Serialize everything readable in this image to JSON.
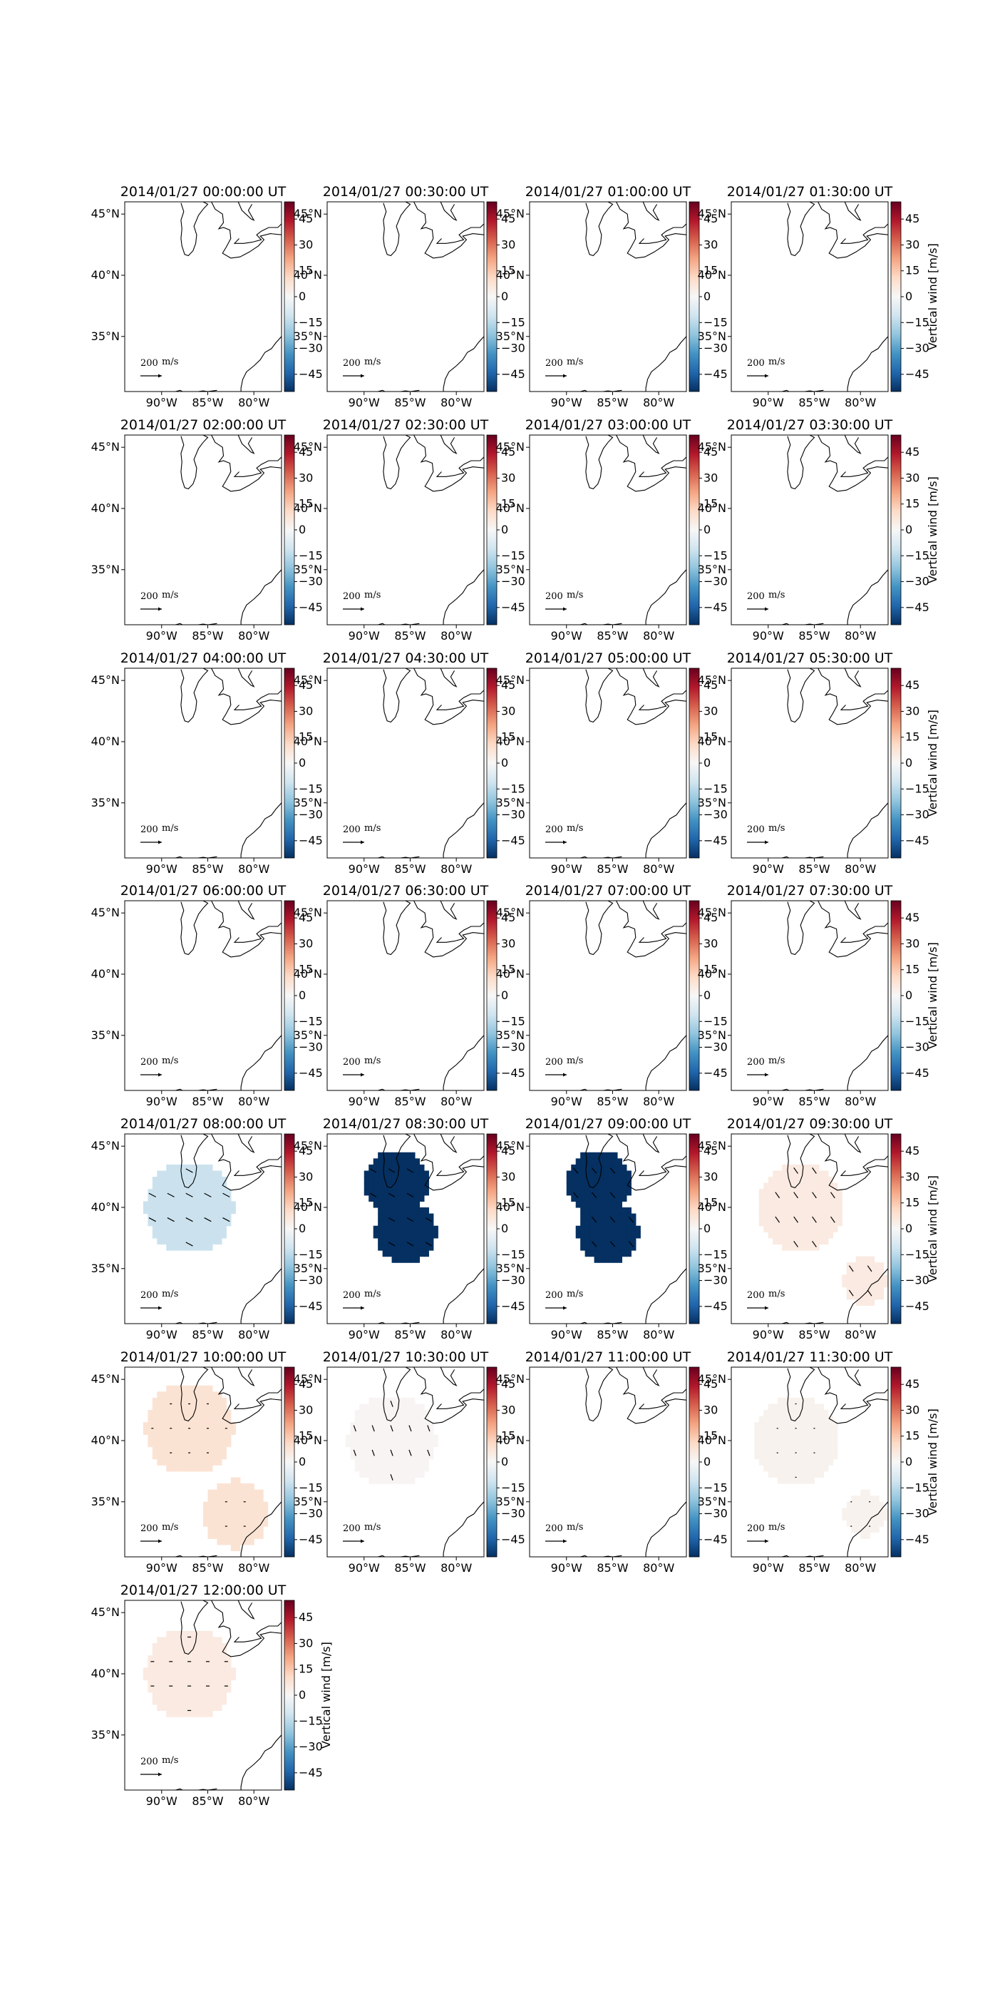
{
  "chart_data": {
    "type": "heatmap",
    "description_fields": [
      "vertical wind field (color) with horizontal wind arrows over the Great Lakes / eastern US"
    ],
    "colorbar": {
      "label": "Vertical wind [m/s]",
      "ticks": [
        45,
        30,
        15,
        0,
        -15,
        -30,
        -45
      ],
      "range": [
        -55,
        55
      ],
      "colormap": "RdBu_r"
    },
    "axes": {
      "lon_ticks": [
        "90°W",
        "85°W",
        "80°W"
      ],
      "lat_ticks": [
        "45°N",
        "40°N",
        "35°N"
      ],
      "lon_values": [
        -90,
        -85,
        -80
      ],
      "lat_values": [
        45,
        40,
        35
      ],
      "lon_range": [
        -94,
        -77
      ],
      "lat_range": [
        30.5,
        46
      ]
    },
    "vector_key": {
      "label": "200",
      "unit_symbol": "m/s"
    },
    "panels": [
      {
        "title": "2014/01/27 00:00:00 UT",
        "value": null,
        "regions": []
      },
      {
        "title": "2014/01/27 00:30:00 UT",
        "value": null,
        "regions": []
      },
      {
        "title": "2014/01/27 01:00:00 UT",
        "value": null,
        "regions": []
      },
      {
        "title": "2014/01/27 01:30:00 UT",
        "value": null,
        "regions": []
      },
      {
        "title": "2014/01/27 02:00:00 UT",
        "value": null,
        "regions": []
      },
      {
        "title": "2014/01/27 02:30:00 UT",
        "value": null,
        "regions": []
      },
      {
        "title": "2014/01/27 03:00:00 UT",
        "value": null,
        "regions": []
      },
      {
        "title": "2014/01/27 03:30:00 UT",
        "value": null,
        "regions": []
      },
      {
        "title": "2014/01/27 04:00:00 UT",
        "value": null,
        "regions": []
      },
      {
        "title": "2014/01/27 04:30:00 UT",
        "value": null,
        "regions": []
      },
      {
        "title": "2014/01/27 05:00:00 UT",
        "value": null,
        "regions": []
      },
      {
        "title": "2014/01/27 05:30:00 UT",
        "value": null,
        "regions": []
      },
      {
        "title": "2014/01/27 06:00:00 UT",
        "value": null,
        "regions": []
      },
      {
        "title": "2014/01/27 06:30:00 UT",
        "value": null,
        "regions": []
      },
      {
        "title": "2014/01/27 07:00:00 UT",
        "value": null,
        "regions": []
      },
      {
        "title": "2014/01/27 07:30:00 UT",
        "value": null,
        "regions": []
      },
      {
        "title": "2014/01/27 08:00:00 UT",
        "value": -12,
        "regions": [
          {
            "lon": -87,
            "lat": 40,
            "r": 4.8
          }
        ],
        "arrows": {
          "angle": 28,
          "len": 11
        }
      },
      {
        "title": "2014/01/27 08:30:00 UT",
        "value": -55,
        "regions": [
          {
            "lon": -86.5,
            "lat": 42,
            "r": 3.4
          },
          {
            "lon": -85.5,
            "lat": 38,
            "r": 3.3
          }
        ],
        "arrows": {
          "angle": 30,
          "len": 10
        }
      },
      {
        "title": "2014/01/27 09:00:00 UT",
        "value": -58,
        "regions": [
          {
            "lon": -86.5,
            "lat": 42,
            "r": 3.4
          },
          {
            "lon": -85.5,
            "lat": 38,
            "r": 3.3
          }
        ],
        "arrows": {
          "angle": 50,
          "len": 10
        }
      },
      {
        "title": "2014/01/27 09:30:00 UT",
        "value": 5,
        "regions": [
          {
            "lon": -86.5,
            "lat": 40,
            "r": 4.7
          },
          {
            "lon": -79.5,
            "lat": 34,
            "r": 2.4
          }
        ],
        "arrows": {
          "angle": 55,
          "len": 10
        }
      },
      {
        "title": "2014/01/27 10:00:00 UT",
        "value": 8,
        "regions": [
          {
            "lon": -87,
            "lat": 41,
            "r": 4.8
          },
          {
            "lon": -82,
            "lat": 34,
            "r": 3.6
          }
        ],
        "arrows": {
          "angle": 0,
          "len": 3
        }
      },
      {
        "title": "2014/01/27 10:30:00 UT",
        "value": 1,
        "regions": [
          {
            "lon": -87,
            "lat": 40,
            "r": 4.8
          }
        ],
        "arrows": {
          "angle": 70,
          "len": 9
        }
      },
      {
        "title": "2014/01/27 11:00:00 UT",
        "value": null,
        "regions": []
      },
      {
        "title": "2014/01/27 11:30:00 UT",
        "value": 2,
        "regions": [
          {
            "lon": -87,
            "lat": 40,
            "r": 4.6
          },
          {
            "lon": -79.5,
            "lat": 34,
            "r": 2.3
          }
        ],
        "arrows": {
          "angle": 0,
          "len": 2
        }
      },
      {
        "title": "2014/01/27 12:00:00 UT",
        "value": 5,
        "regions": [
          {
            "lon": -87,
            "lat": 40,
            "r": 4.8
          }
        ],
        "arrows": {
          "angle": 0,
          "len": 5
        }
      }
    ]
  }
}
